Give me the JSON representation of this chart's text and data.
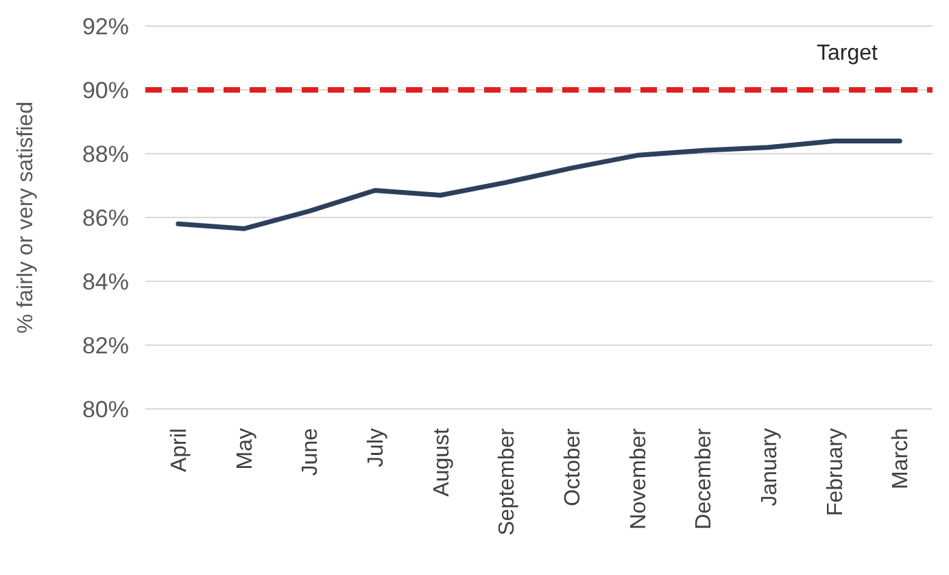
{
  "chart_data": {
    "type": "line",
    "ylabel": "% fairly or very satisfied",
    "categories": [
      "April",
      "May",
      "June",
      "July",
      "August",
      "September",
      "October",
      "November",
      "December",
      "January",
      "February",
      "March"
    ],
    "series": [
      {
        "color": "#2e3f5c",
        "values": [
          85.8,
          85.65,
          86.2,
          86.85,
          86.7,
          87.1,
          87.55,
          87.95,
          88.1,
          88.2,
          88.4,
          88.4
        ]
      }
    ],
    "ylim": [
      80,
      92
    ],
    "yticks": [
      {
        "value": 80,
        "label": "80%"
      },
      {
        "value": 82,
        "label": "82%"
      },
      {
        "value": 84,
        "label": "84%"
      },
      {
        "value": 86,
        "label": "86%"
      },
      {
        "value": 88,
        "label": "88%"
      },
      {
        "value": 90,
        "label": "90%"
      },
      {
        "value": 92,
        "label": "92%"
      }
    ],
    "ref_lines": [
      {
        "axis": "y",
        "value": 90,
        "label": "Target",
        "color": "#e02020",
        "line_style": "dashed"
      }
    ],
    "grid": "y",
    "marker": "none",
    "line_style": "solid"
  }
}
